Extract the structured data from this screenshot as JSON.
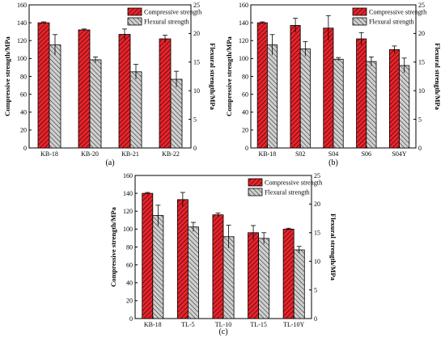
{
  "chart_data": [
    {
      "type": "bar",
      "panel_label": "(a)",
      "categories": [
        "KB-18",
        "KB-20",
        "KB-21",
        "KB-22"
      ],
      "ylabel": "Compressive strength/MPa",
      "ylabel_right": "Flexural strength/MPa",
      "ylim": [
        0,
        160
      ],
      "ylim_right": [
        0,
        25
      ],
      "yticks": [
        "0",
        "20",
        "40",
        "60",
        "80",
        "100",
        "120",
        "140",
        "160"
      ],
      "yticks_right": [
        "0",
        "5",
        "10",
        "15",
        "20",
        "25"
      ],
      "legend_position": "top-right",
      "series": [
        {
          "name": "Compressive strength",
          "axis": "left",
          "pattern": "red-hatch",
          "values": [
            140,
            132,
            127,
            122
          ],
          "errors": [
            1,
            1,
            6,
            4
          ]
        },
        {
          "name": "Flexural strength",
          "axis": "right",
          "pattern": "gray-hatch",
          "values": [
            18,
            15.4,
            13.3,
            12
          ],
          "errors": [
            1.8,
            0.5,
            1.3,
            1.4
          ]
        }
      ]
    },
    {
      "type": "bar",
      "panel_label": "(b)",
      "categories": [
        "KB-18",
        "S02",
        "S04",
        "S06",
        "S04Y"
      ],
      "ylabel": "Compressive strength/MPa",
      "ylabel_right": "Flexural strength/MPa",
      "ylim": [
        0,
        160
      ],
      "ylim_right": [
        0,
        25
      ],
      "yticks": [
        "0",
        "20",
        "40",
        "60",
        "80",
        "100",
        "120",
        "140",
        "160"
      ],
      "yticks_right": [
        "0",
        "5",
        "10",
        "15",
        "20",
        "25"
      ],
      "legend_position": "top-right",
      "series": [
        {
          "name": "Compressive strength",
          "axis": "left",
          "pattern": "red-hatch",
          "values": [
            140,
            137,
            134,
            122,
            110
          ],
          "errors": [
            1,
            8,
            14,
            7,
            4
          ]
        },
        {
          "name": "Flexural strength",
          "axis": "right",
          "pattern": "gray-hatch",
          "values": [
            18,
            17.3,
            15.5,
            15.1,
            14.4
          ],
          "errors": [
            1.8,
            1.3,
            0.3,
            0.8,
            1.3
          ]
        }
      ]
    },
    {
      "type": "bar",
      "panel_label": "(c)",
      "categories": [
        "KB-18",
        "TL-5",
        "TL-10",
        "TL-15",
        "TL-10Y"
      ],
      "ylabel": "Compressive strength/MPa",
      "ylabel_right": "Flexural strength/MPa",
      "ylim": [
        0,
        160
      ],
      "ylim_right": [
        0,
        25
      ],
      "yticks": [
        "0",
        "20",
        "40",
        "60",
        "80",
        "100",
        "120",
        "140",
        "160"
      ],
      "yticks_right": [
        "0",
        "5",
        "10",
        "15",
        "20",
        "25"
      ],
      "legend_position": "top-right",
      "series": [
        {
          "name": "Compressive strength",
          "axis": "left",
          "pattern": "red-hatch",
          "values": [
            140,
            133,
            116,
            96,
            100
          ],
          "errors": [
            1,
            8,
            2,
            8,
            1
          ]
        },
        {
          "name": "Flexural strength",
          "axis": "right",
          "pattern": "gray-hatch",
          "values": [
            18,
            16,
            14.3,
            14,
            12
          ],
          "errors": [
            1.8,
            0.8,
            2,
            1,
            0.6
          ]
        }
      ]
    }
  ],
  "colors": {
    "compressive_fill": "#e8232a",
    "compressive_hatch": "#000000",
    "flexural_fill": "#c8c8c8",
    "flexural_hatch": "#000000"
  }
}
